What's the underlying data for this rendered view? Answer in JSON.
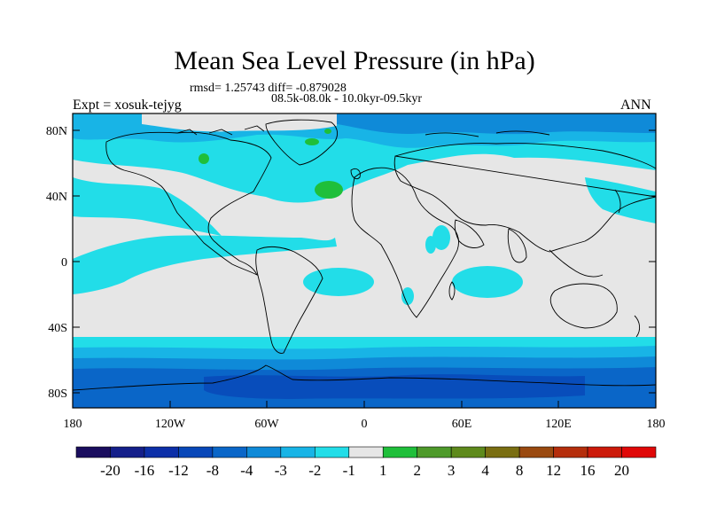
{
  "title": "Mean Sea Level Pressure (in hPa)",
  "rmsd_line": "rmsd= 1.25743 diff= -0.879028",
  "period_line": "08.5k-08.0k - 10.0kyr-09.5kyr",
  "expt_label": "Expt = xosuk-tejyg",
  "season_label": "ANN",
  "lat_labels": [
    "80N",
    "40N",
    "0",
    "40S",
    "80S"
  ],
  "lon_labels": [
    "180",
    "120W",
    "60W",
    "0",
    "60E",
    "120E",
    "180"
  ],
  "colorbar": {
    "labels": [
      "-20",
      "-16",
      "-12",
      "-8",
      "-4",
      "-3",
      "-2",
      "-1",
      "1",
      "2",
      "3",
      "4",
      "8",
      "12",
      "16",
      "20"
    ],
    "colors": [
      "#1a0d5e",
      "#141f8a",
      "#0c2fa8",
      "#0847b8",
      "#0a66c8",
      "#0f8ad8",
      "#18b4e6",
      "#22dde8",
      "#e6e6e6",
      "#1fbf3a",
      "#4e9a2a",
      "#5e8a1c",
      "#7a6e12",
      "#9a4a10",
      "#b52e0c",
      "#cc1a0a",
      "#e00808"
    ]
  },
  "colors": {
    "background_field": "#e6e6e6",
    "cyan": "#22dde8",
    "light_blue": "#18b4e6",
    "mid_blue": "#0f8ad8",
    "deep_blue": "#0a66c8",
    "navy": "#0847b8",
    "green": "#1fbf3a"
  }
}
